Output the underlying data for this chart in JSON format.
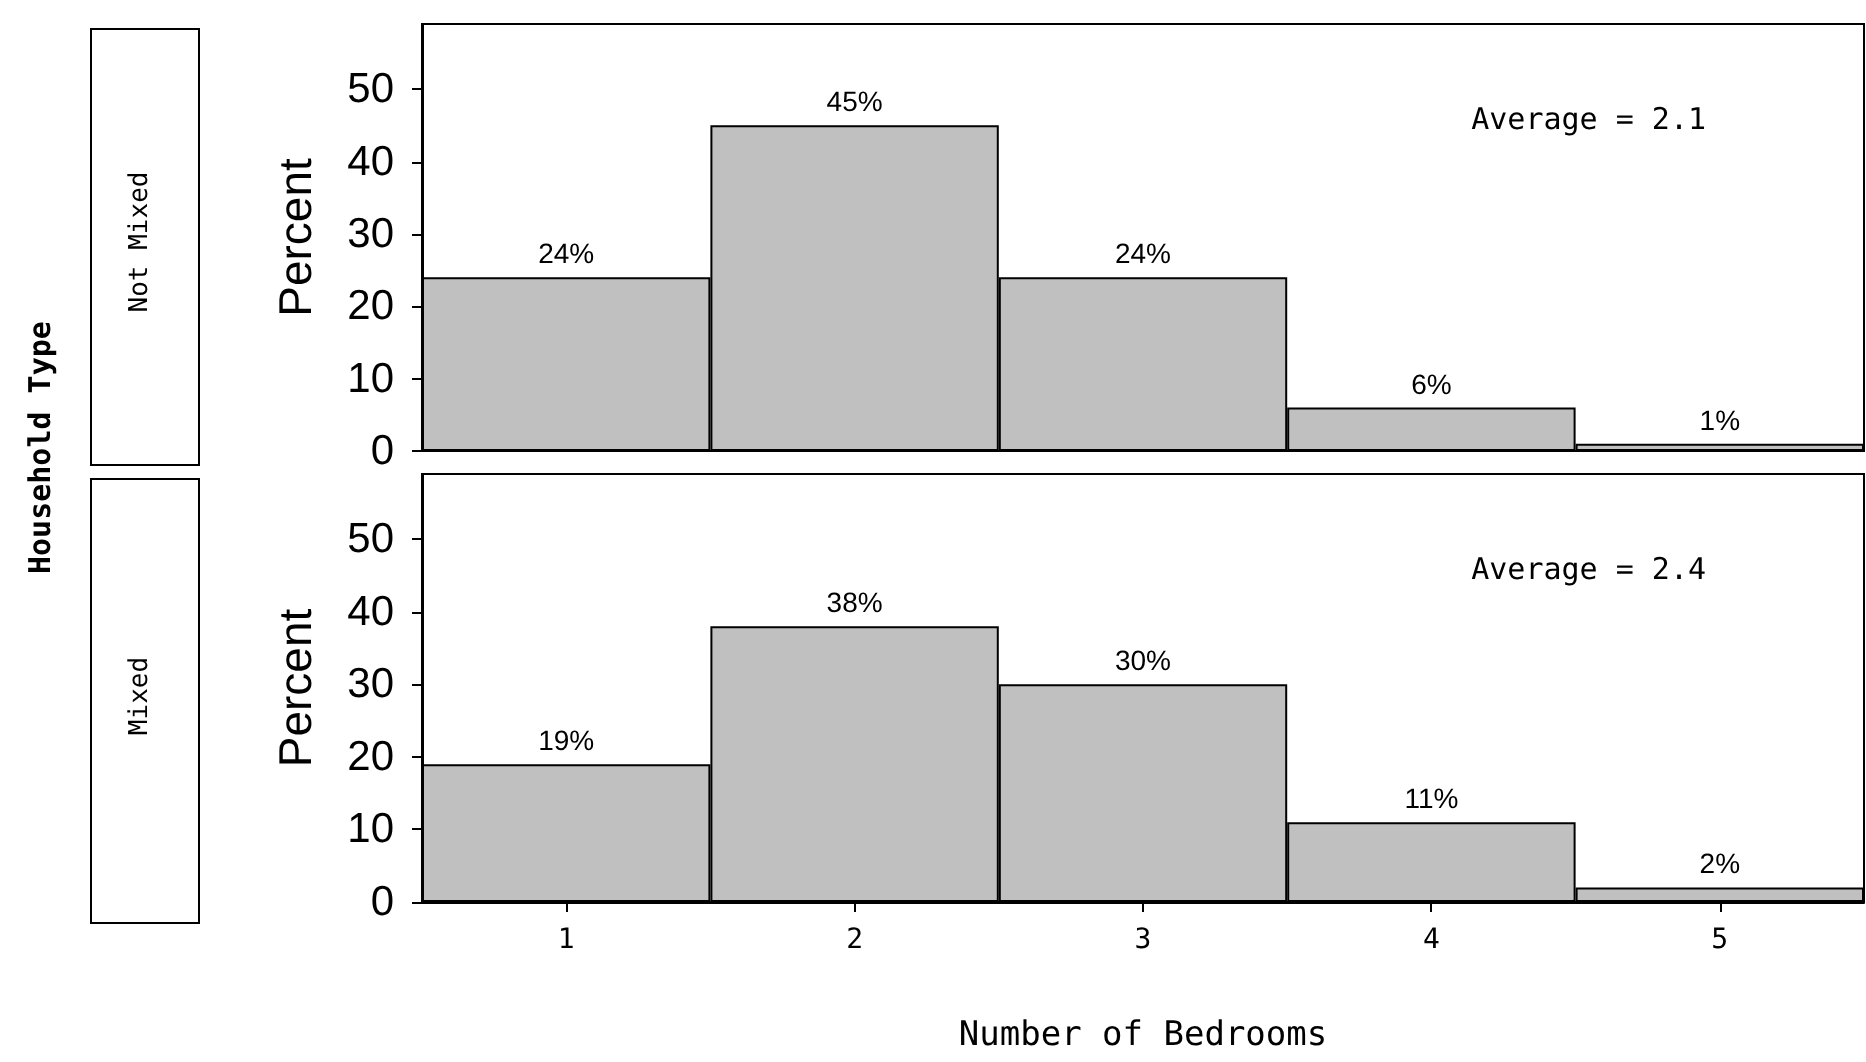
{
  "chart_data": [
    {
      "type": "bar",
      "ylabel": "Percent",
      "annotations": [
        "Not Mixed",
        "Average = 2.1",
        "Household Type"
      ],
      "categories": [
        "1",
        "2",
        "3",
        "4",
        "5"
      ],
      "values": [
        24,
        45,
        24,
        6,
        1
      ],
      "value_labels": [
        "24%",
        "45%",
        "24%",
        "6%",
        "1%"
      ],
      "color": "#c0c0c0",
      "ylim": [
        0,
        59
      ],
      "yticks": [
        0,
        10,
        20,
        30,
        40,
        50
      ],
      "tick_labels": "y"
    },
    {
      "type": "bar",
      "ylabel": "Percent",
      "xlabel": "Number of Bedrooms",
      "annotations": [
        "Mixed",
        "Average = 2.4"
      ],
      "categories": [
        "1",
        "2",
        "3",
        "4",
        "5"
      ],
      "values": [
        19,
        38,
        30,
        11,
        2
      ],
      "value_labels": [
        "19%",
        "38%",
        "30%",
        "11%",
        "2%"
      ],
      "color": "#c0c0c0",
      "ylim": [
        0,
        59
      ],
      "yticks": [
        0,
        10,
        20,
        30,
        40,
        50
      ]
    }
  ]
}
